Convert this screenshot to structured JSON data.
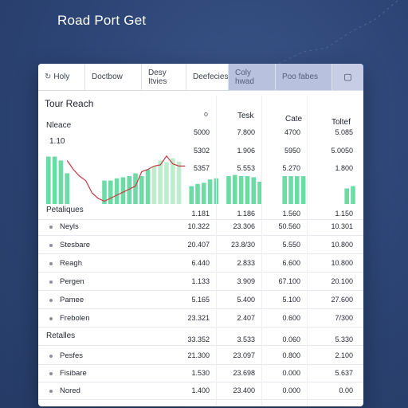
{
  "app_title": "Road Port Get",
  "tabs": [
    {
      "label": "Holy",
      "icon": "refresh-icon"
    },
    {
      "label": "Doctbow"
    },
    {
      "label": "Desy Itvies"
    },
    {
      "label": "Deefecies"
    },
    {
      "label": "Coly hwad"
    },
    {
      "label": "Poo fabes"
    },
    {
      "label": "",
      "icon": "window-icon"
    }
  ],
  "section_title": "Tour Reach",
  "column_headers": {
    "col1_icon": "o",
    "col2": "Tesk",
    "col3": "Cate",
    "col4": "Toltef"
  },
  "metric_label": "Nleace",
  "metric_value": "1.10",
  "chart_data": {
    "type": "bar",
    "x": [
      0,
      1,
      2,
      3,
      4,
      5,
      6,
      7,
      8,
      9,
      10,
      11,
      12,
      13,
      14,
      15,
      16,
      17,
      18,
      19,
      20,
      21,
      22,
      23,
      24,
      25,
      26,
      27,
      28,
      29,
      30,
      31,
      32,
      33,
      34,
      35,
      36,
      37,
      38,
      39,
      40,
      41,
      42,
      43,
      44,
      45,
      46,
      47,
      48,
      49
    ],
    "series": [
      {
        "name": "bars",
        "values": [
          0.85,
          0.85,
          0.78,
          0.55,
          null,
          null,
          null,
          null,
          null,
          0.42,
          0.42,
          0.46,
          0.48,
          0.5,
          0.55,
          0.5,
          0.62,
          0.68,
          0.78,
          0.75,
          0.82,
          0.76,
          null,
          0.32,
          0.36,
          0.38,
          0.44,
          0.46,
          null,
          0.5,
          0.52,
          0.5,
          0.5,
          0.48,
          0.4,
          null,
          null,
          null,
          0.5,
          0.5,
          0.5,
          0.5,
          null,
          null,
          null,
          null,
          null,
          null,
          0.28,
          0.32
        ]
      },
      {
        "name": "line",
        "values": [
          null,
          null,
          null,
          0.78,
          0.62,
          0.5,
          0.42,
          0.2,
          0.1,
          0.05,
          null,
          null,
          null,
          null,
          0.32,
          0.58,
          0.62,
          0.68,
          0.7,
          0.86,
          0.72,
          0.68,
          0.68,
          null,
          null,
          null,
          null,
          null,
          null,
          null,
          null,
          null,
          null,
          null,
          null,
          null,
          null,
          null,
          null,
          null,
          null,
          null,
          null,
          null,
          null,
          null,
          null,
          null,
          null,
          null
        ]
      }
    ],
    "bar_color": "#6ddba6",
    "line_color": "#c63a44",
    "grid": false
  },
  "top_values": [
    [
      "5000",
      "7.800",
      "4700",
      "5.085"
    ],
    [
      "5302",
      "1.906",
      "5950",
      "5.0050"
    ],
    [
      "5357",
      "5.553",
      "5.270",
      "1.800"
    ]
  ],
  "section1": {
    "title": "Petaliques",
    "title_values": [
      "1.181",
      "1.186",
      "1.560",
      "1.150"
    ],
    "rows": [
      {
        "label": "Neyls",
        "values": [
          "10.322",
          "23.306",
          "50.560",
          "10.301"
        ]
      },
      {
        "label": "Stesbare",
        "values": [
          "20.407",
          "23.8/30",
          "5.550",
          "10.800"
        ]
      },
      {
        "label": "Reagh",
        "values": [
          "6.440",
          "2.833",
          "6.600",
          "10.800"
        ]
      },
      {
        "label": "Pergen",
        "values": [
          "1.133",
          "3.909",
          "67.100",
          "20.100"
        ]
      },
      {
        "label": "Pamee",
        "values": [
          "5.165",
          "5.400",
          "5.100",
          "27.600"
        ]
      },
      {
        "label": "Frebolen",
        "values": [
          "23.321",
          "2.407",
          "0.600",
          "7/300"
        ]
      }
    ]
  },
  "section2": {
    "title": "Retalles",
    "title_values": [
      "33.352",
      "3.533",
      "0.060",
      "5.330"
    ],
    "rows": [
      {
        "label": "Pesfes",
        "values": [
          "21.300",
          "23.097",
          "0.800",
          "2.100"
        ]
      },
      {
        "label": "Fisibare",
        "values": [
          "1.530",
          "23.698",
          "0.000",
          "5.637"
        ]
      },
      {
        "label": "Nored",
        "values": [
          "1.400",
          "23.400",
          "0.000",
          "0.00"
        ]
      }
    ]
  }
}
